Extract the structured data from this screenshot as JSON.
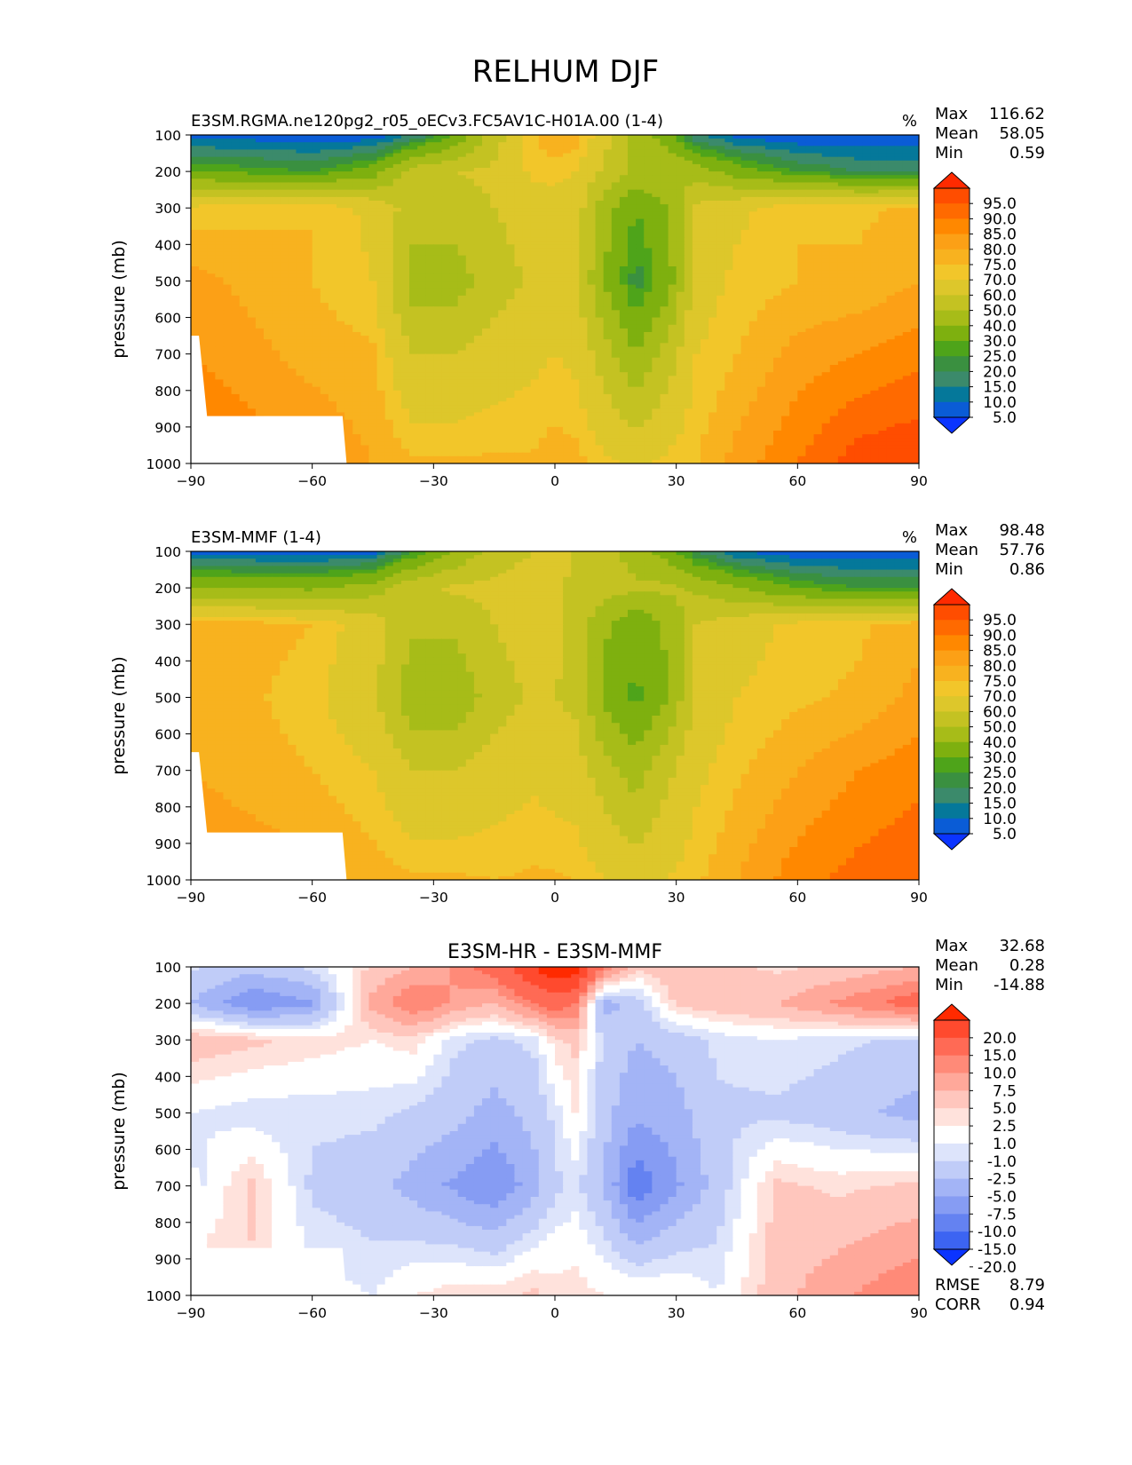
{
  "figure_title": "RELHUM DJF",
  "chart_data": [
    {
      "type": "heatmap",
      "title": "E3SM.RGMA.ne120pg2_r05_oECv3.FC5AV1C-H01A.00 (1-4)",
      "units": "%",
      "xlabel": "",
      "ylabel": "pressure (mb)",
      "xlim": [
        -90,
        90
      ],
      "ylim": [
        1000,
        100
      ],
      "x_ticks": [
        -90,
        -60,
        -30,
        0,
        30,
        60,
        90
      ],
      "x_tick_labels": [
        "−90",
        "−60",
        "−30",
        "0",
        "30",
        "60",
        "90"
      ],
      "y_ticks": [
        100,
        200,
        300,
        400,
        500,
        600,
        700,
        800,
        900,
        1000
      ],
      "stats": [
        {
          "label": "Max",
          "value": "116.62"
        },
        {
          "label": "Mean",
          "value": "58.05"
        },
        {
          "label": "Min",
          "value": "0.59"
        }
      ],
      "colorbar_levels": [
        "95.0",
        "90.0",
        "85.0",
        "80.0",
        "75.0",
        "70.0",
        "60.0",
        "50.0",
        "40.0",
        "30.0",
        "25.0",
        "20.0",
        "15.0",
        "10.0",
        "5.0"
      ],
      "colorbar_colors": [
        "#ff2a00",
        "#ff4d00",
        "#ff6a00",
        "#ff8800",
        "#fca016",
        "#f8b21f",
        "#f2c62a",
        "#ddc72b",
        "#c4c222",
        "#a7bc18",
        "#7eb00f",
        "#4ea41a",
        "#3a9040",
        "#3b8a6b",
        "#05789a",
        "#0a5cd6",
        "#0b34ff"
      ],
      "field": "full",
      "zonal_profile": [
        [
          -90,
          8,
          30,
          72,
          82,
          85,
          92
        ],
        [
          -60,
          6,
          25,
          75,
          75,
          78,
          85
        ],
        [
          -45,
          6,
          35,
          68,
          70,
          76,
          80
        ],
        [
          -35,
          15,
          55,
          55,
          45,
          60,
          76
        ],
        [
          -25,
          30,
          60,
          55,
          45,
          60,
          76
        ],
        [
          -15,
          55,
          62,
          60,
          55,
          65,
          76
        ],
        [
          -5,
          75,
          72,
          65,
          62,
          68,
          76
        ],
        [
          0,
          80,
          72,
          67,
          65,
          70,
          78
        ],
        [
          5,
          78,
          70,
          66,
          62,
          68,
          77
        ],
        [
          12,
          65,
          58,
          45,
          40,
          55,
          72
        ],
        [
          20,
          45,
          48,
          30,
          22,
          40,
          68
        ],
        [
          28,
          35,
          50,
          40,
          35,
          55,
          72
        ],
        [
          35,
          15,
          45,
          62,
          65,
          70,
          75
        ],
        [
          45,
          8,
          35,
          68,
          72,
          75,
          82
        ],
        [
          60,
          5,
          25,
          75,
          75,
          82,
          90
        ],
        [
          75,
          5,
          20,
          74,
          76,
          85,
          98
        ],
        [
          90,
          5,
          20,
          76,
          80,
          88,
          100
        ]
      ],
      "mask_label": "",
      "footer": []
    },
    {
      "type": "heatmap",
      "title": "E3SM-MMF (1-4)",
      "units": "%",
      "xlabel": "",
      "ylabel": "pressure (mb)",
      "xlim": [
        -90,
        90
      ],
      "ylim": [
        1000,
        100
      ],
      "x_ticks": [
        -90,
        -60,
        -30,
        0,
        30,
        60,
        90
      ],
      "x_tick_labels": [
        "−90",
        "−60",
        "−30",
        "0",
        "30",
        "60",
        "90"
      ],
      "y_ticks": [
        100,
        200,
        300,
        400,
        500,
        600,
        700,
        800,
        900,
        1000
      ],
      "stats": [
        {
          "label": "Max",
          "value": "98.48"
        },
        {
          "label": "Mean",
          "value": "57.76"
        },
        {
          "label": "Min",
          "value": "0.86"
        }
      ],
      "colorbar_levels": [
        "95.0",
        "90.0",
        "85.0",
        "80.0",
        "75.0",
        "70.0",
        "60.0",
        "50.0",
        "40.0",
        "30.0",
        "25.0",
        "20.0",
        "15.0",
        "10.0",
        "5.0"
      ],
      "colorbar_colors": [
        "#ff2a00",
        "#ff4d00",
        "#ff6a00",
        "#ff8800",
        "#fca016",
        "#f8b21f",
        "#f2c62a",
        "#ddc72b",
        "#c4c222",
        "#a7bc18",
        "#7eb00f",
        "#4ea41a",
        "#3a9040",
        "#3b8a6b",
        "#05789a",
        "#0a5cd6",
        "#0b34ff"
      ],
      "field": "full",
      "zonal_profile": [
        [
          -90,
          8,
          40,
          80,
          80,
          80,
          85
        ],
        [
          -60,
          6,
          38,
          75,
          72,
          75,
          82
        ],
        [
          -45,
          8,
          45,
          65,
          62,
          70,
          78
        ],
        [
          -35,
          25,
          58,
          52,
          42,
          60,
          76
        ],
        [
          -25,
          40,
          62,
          52,
          42,
          60,
          76
        ],
        [
          -15,
          55,
          62,
          60,
          55,
          65,
          75
        ],
        [
          -5,
          60,
          65,
          66,
          62,
          68,
          76
        ],
        [
          0,
          62,
          62,
          62,
          60,
          66,
          76
        ],
        [
          5,
          60,
          58,
          58,
          58,
          65,
          75
        ],
        [
          12,
          55,
          55,
          42,
          38,
          55,
          70
        ],
        [
          20,
          45,
          52,
          32,
          28,
          45,
          66
        ],
        [
          28,
          35,
          52,
          42,
          40,
          58,
          70
        ],
        [
          35,
          20,
          48,
          60,
          62,
          68,
          74
        ],
        [
          45,
          10,
          40,
          66,
          70,
          74,
          80
        ],
        [
          60,
          6,
          30,
          72,
          74,
          80,
          88
        ],
        [
          75,
          5,
          25,
          74,
          76,
          85,
          92
        ],
        [
          90,
          5,
          25,
          78,
          82,
          88,
          95
        ]
      ],
      "mask_label": "",
      "footer": []
    },
    {
      "type": "heatmap",
      "title": "E3SM-HR - E3SM-MMF",
      "units": "",
      "xlabel": "",
      "ylabel": "pressure (mb)",
      "xlim": [
        -90,
        90
      ],
      "ylim": [
        1000,
        100
      ],
      "x_ticks": [
        -90,
        -60,
        -30,
        0,
        30,
        60,
        90
      ],
      "x_tick_labels": [
        "−90",
        "−60",
        "−30",
        "0",
        "30",
        "60",
        "90"
      ],
      "y_ticks": [
        100,
        200,
        300,
        400,
        500,
        600,
        700,
        800,
        900,
        1000
      ],
      "stats": [
        {
          "label": "Max",
          "value": "32.68"
        },
        {
          "label": "Mean",
          "value": "0.28"
        },
        {
          "label": "Min",
          "value": "-14.88"
        }
      ],
      "colorbar_levels": [
        "20.0",
        "15.0",
        "10.0",
        "7.5",
        "5.0",
        "2.5",
        "1.0",
        "-1.0",
        "-2.5",
        "-5.0",
        "-7.5",
        "-10.0",
        "-15.0",
        "-20.0"
      ],
      "colorbar_colors": [
        "#ff2a00",
        "#ff4a2e",
        "#ff6a55",
        "#ff8a78",
        "#ffa89a",
        "#ffc6bd",
        "#ffe2dc",
        "#ffffff",
        "#dde4fb",
        "#c0ccf8",
        "#a3b4f6",
        "#869cf3",
        "#6482f1",
        "#3c64f2",
        "#0b34ff"
      ],
      "field": "diff",
      "zonal_profile": [
        [
          -90,
          -2,
          -5,
          4,
          -1,
          -2,
          3
        ],
        [
          -75,
          -4,
          -10,
          3,
          -2,
          3,
          2
        ],
        [
          -60,
          -2,
          -8,
          2,
          -2,
          -3,
          0
        ],
        [
          -45,
          3,
          6,
          1,
          -2,
          -4,
          -1
        ],
        [
          -35,
          5,
          10,
          2,
          -3,
          -6,
          1
        ],
        [
          -25,
          8,
          7,
          -2,
          -4,
          -8,
          2
        ],
        [
          -15,
          12,
          5,
          -3,
          -6,
          -10,
          2
        ],
        [
          -5,
          20,
          10,
          -2,
          -4,
          -6,
          3
        ],
        [
          0,
          25,
          12,
          2,
          -2,
          -3,
          2
        ],
        [
          5,
          22,
          10,
          3,
          1,
          -2,
          2
        ],
        [
          12,
          10,
          -6,
          -3,
          -4,
          -5,
          1
        ],
        [
          20,
          3,
          -4,
          -5,
          -7,
          -12,
          1
        ],
        [
          30,
          5,
          3,
          -4,
          -6,
          -8,
          1
        ],
        [
          40,
          3,
          4,
          -2,
          -3,
          -4,
          -1
        ],
        [
          55,
          2,
          5,
          -1,
          -3,
          3,
          4
        ],
        [
          70,
          3,
          8,
          -2,
          -4,
          2,
          7
        ],
        [
          90,
          5,
          12,
          -3,
          -6,
          3,
          10
        ]
      ],
      "mask_label": "",
      "footer": [
        {
          "label": "RMSE",
          "value": "8.79"
        },
        {
          "label": "CORR",
          "value": "0.94"
        }
      ]
    }
  ]
}
